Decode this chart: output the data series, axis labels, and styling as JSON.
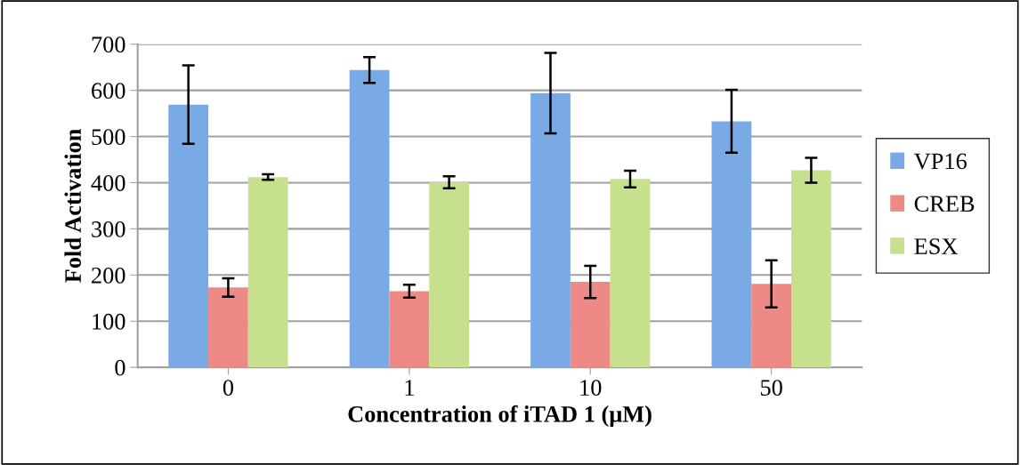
{
  "chart_data": {
    "type": "bar",
    "xlabel": "Concentration of iTAD 1 (μM)",
    "ylabel": "Fold Activation",
    "categories": [
      "0",
      "1",
      "10",
      "50"
    ],
    "series": [
      {
        "name": "VP16",
        "color": "#7aaae6",
        "values": [
          569,
          644,
          594,
          533
        ],
        "errors": [
          85,
          28,
          87,
          68
        ]
      },
      {
        "name": "CREB",
        "color": "#ee8a86",
        "values": [
          173,
          165,
          185,
          181
        ],
        "errors": [
          20,
          14,
          35,
          51
        ]
      },
      {
        "name": "ESX",
        "color": "#c6e08e",
        "values": [
          412,
          401,
          408,
          427
        ],
        "errors": [
          6,
          13,
          18,
          27
        ]
      }
    ],
    "ylim": [
      0,
      700
    ],
    "yticks": [
      0,
      100,
      200,
      300,
      400,
      500,
      600,
      700
    ],
    "grid": "y",
    "legend": "right"
  }
}
